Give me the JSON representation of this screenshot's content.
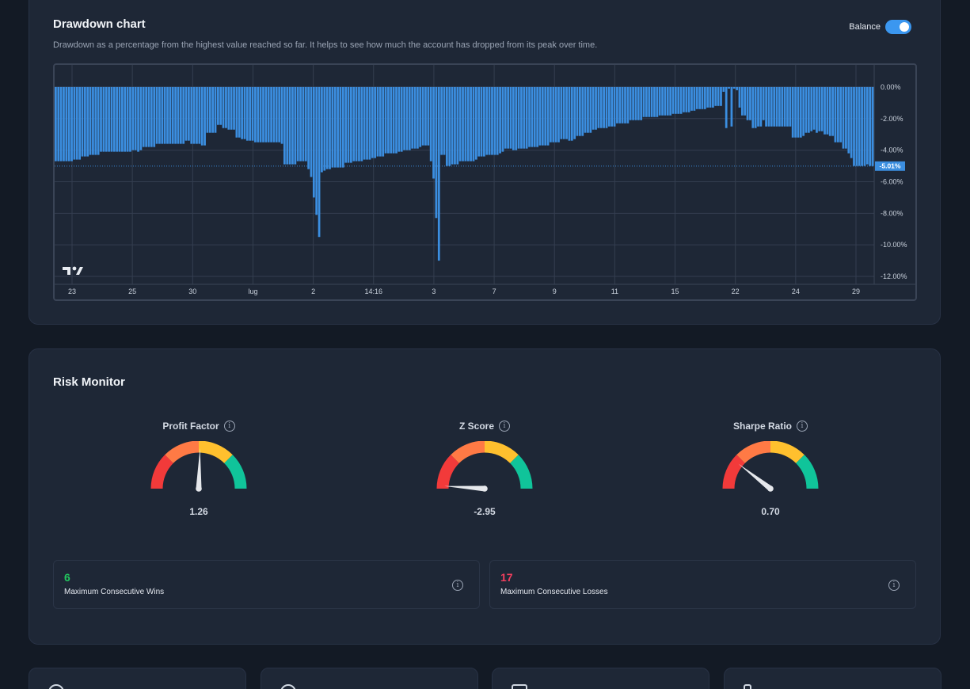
{
  "drawdown": {
    "title": "Drawdown chart",
    "subtitle": "Drawdown as a percentage from the highest value reached so far. It helps to see how much the account has dropped from its peak over time.",
    "toggle_label": "Balance",
    "toggle_on": true
  },
  "chart_data": {
    "type": "bar",
    "title": "Drawdown chart",
    "y_unit": "%",
    "ylim": [
      -12.5,
      1.4
    ],
    "y_ticks": [
      "0.00%",
      "-2.00%",
      "-4.00%",
      "-6.00%",
      "-8.00%",
      "-10.00%",
      "-12.00%"
    ],
    "y_tick_values": [
      0,
      -2,
      -4,
      -6,
      -8,
      -10,
      -12
    ],
    "x_ticks": [
      "23",
      "25",
      "30",
      "lug",
      "2",
      "14:16",
      "3",
      "7",
      "9",
      "11",
      "15",
      "22",
      "24",
      "29"
    ],
    "current_value_label": "-5.01%",
    "current_value": -5.01,
    "bar_color": "#3b8ee0",
    "values": [
      -4.7,
      -4.7,
      -4.7,
      -4.7,
      -4.7,
      -4.7,
      -4.7,
      -4.6,
      -4.6,
      -4.6,
      -4.4,
      -4.4,
      -4.4,
      -4.3,
      -4.3,
      -4.3,
      -4.3,
      -4.1,
      -4.1,
      -4.1,
      -4.1,
      -4.1,
      -4.1,
      -4.1,
      -4.1,
      -4.1,
      -4.1,
      -4.1,
      -4.1,
      -4.0,
      -4.0,
      -4.1,
      -4.0,
      -3.8,
      -3.8,
      -3.8,
      -3.8,
      -3.8,
      -3.6,
      -3.6,
      -3.6,
      -3.6,
      -3.6,
      -3.6,
      -3.6,
      -3.6,
      -3.6,
      -3.6,
      -3.6,
      -3.4,
      -3.4,
      -3.6,
      -3.6,
      -3.6,
      -3.6,
      -3.7,
      -3.7,
      -2.9,
      -2.9,
      -2.9,
      -2.9,
      -2.4,
      -2.4,
      -2.6,
      -2.6,
      -2.7,
      -2.7,
      -2.7,
      -3.2,
      -3.2,
      -3.3,
      -3.3,
      -3.4,
      -3.4,
      -3.4,
      -3.5,
      -3.5,
      -3.5,
      -3.5,
      -3.5,
      -3.5,
      -3.5,
      -3.5,
      -3.5,
      -3.5,
      -3.6,
      -4.9,
      -4.9,
      -4.9,
      -4.9,
      -4.9,
      -4.7,
      -4.7,
      -4.7,
      -4.7,
      -5.2,
      -5.7,
      -7.0,
      -8.1,
      -9.5,
      -5.4,
      -5.3,
      -5.2,
      -5.2,
      -5.1,
      -5.1,
      -5.1,
      -5.1,
      -5.1,
      -4.8,
      -4.8,
      -4.8,
      -4.7,
      -4.7,
      -4.7,
      -4.7,
      -4.6,
      -4.6,
      -4.6,
      -4.5,
      -4.5,
      -4.4,
      -4.4,
      -4.4,
      -4.2,
      -4.2,
      -4.2,
      -4.2,
      -4.2,
      -4.1,
      -4.1,
      -4.0,
      -4.0,
      -4.0,
      -3.9,
      -3.9,
      -3.9,
      -3.8,
      -3.7,
      -3.7,
      -3.7,
      -4.7,
      -5.8,
      -8.3,
      -11.0,
      -4.3,
      -4.3,
      -5.0,
      -5.0,
      -4.9,
      -4.9,
      -4.9,
      -4.7,
      -4.7,
      -4.7,
      -4.7,
      -4.7,
      -4.7,
      -4.6,
      -4.4,
      -4.4,
      -4.4,
      -4.3,
      -4.3,
      -4.3,
      -4.3,
      -4.3,
      -4.2,
      -4.1,
      -3.9,
      -3.9,
      -3.9,
      -4.0,
      -4.0,
      -3.9,
      -3.9,
      -3.9,
      -3.9,
      -3.8,
      -3.8,
      -3.8,
      -3.8,
      -3.7,
      -3.7,
      -3.7,
      -3.7,
      -3.5,
      -3.5,
      -3.5,
      -3.5,
      -3.3,
      -3.3,
      -3.3,
      -3.4,
      -3.4,
      -3.3,
      -3.1,
      -3.1,
      -3.1,
      -2.9,
      -2.9,
      -2.9,
      -2.7,
      -2.7,
      -2.6,
      -2.6,
      -2.6,
      -2.6,
      -2.5,
      -2.5,
      -2.5,
      -2.3,
      -2.3,
      -2.3,
      -2.3,
      -2.3,
      -2.1,
      -2.1,
      -2.1,
      -2.1,
      -2.1,
      -1.9,
      -1.9,
      -1.9,
      -1.9,
      -1.9,
      -1.9,
      -1.8,
      -1.8,
      -1.8,
      -1.8,
      -1.8,
      -1.7,
      -1.7,
      -1.7,
      -1.7,
      -1.6,
      -1.6,
      -1.6,
      -1.5,
      -1.5,
      -1.4,
      -1.4,
      -1.4,
      -1.4,
      -1.3,
      -1.3,
      -1.3,
      -1.2,
      -1.2,
      -1.2,
      -0.3,
      -2.6,
      -0.1,
      -2.5,
      -0.1,
      -0.2,
      -1.3,
      -1.8,
      -1.8,
      -2.1,
      -2.1,
      -2.6,
      -2.6,
      -2.5,
      -2.5,
      -2.1,
      -2.5,
      -2.5,
      -2.5,
      -2.5,
      -2.5,
      -2.5,
      -2.5,
      -2.5,
      -2.5,
      -2.5,
      -3.2,
      -3.2,
      -3.2,
      -3.2,
      -3.1,
      -2.9,
      -2.9,
      -2.8,
      -2.7,
      -2.9,
      -2.8,
      -2.8,
      -3.0,
      -3.0,
      -3.1,
      -3.1,
      -3.5,
      -3.5,
      -3.5,
      -3.9,
      -3.9,
      -4.2,
      -4.5,
      -5.0,
      -5.0,
      -5.0,
      -5.0,
      -5.0,
      -4.9,
      -5.0,
      -5.01
    ]
  },
  "risk": {
    "title": "Risk Monitor",
    "gauges": [
      {
        "label": "Profit Factor",
        "value": "1.26",
        "needle_fraction": 0.51
      },
      {
        "label": "Z Score",
        "value": "-2.95",
        "needle_fraction": 0.02
      },
      {
        "label": "Sharpe Ratio",
        "value": "0.70",
        "needle_fraction": 0.21
      }
    ],
    "gauge_colors": [
      "#f23a3a",
      "#ff7a45",
      "#ffc02e",
      "#10c49a"
    ],
    "wins": {
      "value": "6",
      "label": "Maximum Consecutive Wins",
      "color": "#22c55e"
    },
    "losses": {
      "value": "17",
      "label": "Maximum Consecutive Losses",
      "color": "#f43f5e"
    }
  },
  "icons": {
    "info": "info-icon",
    "logo": "tradingview-logo"
  }
}
